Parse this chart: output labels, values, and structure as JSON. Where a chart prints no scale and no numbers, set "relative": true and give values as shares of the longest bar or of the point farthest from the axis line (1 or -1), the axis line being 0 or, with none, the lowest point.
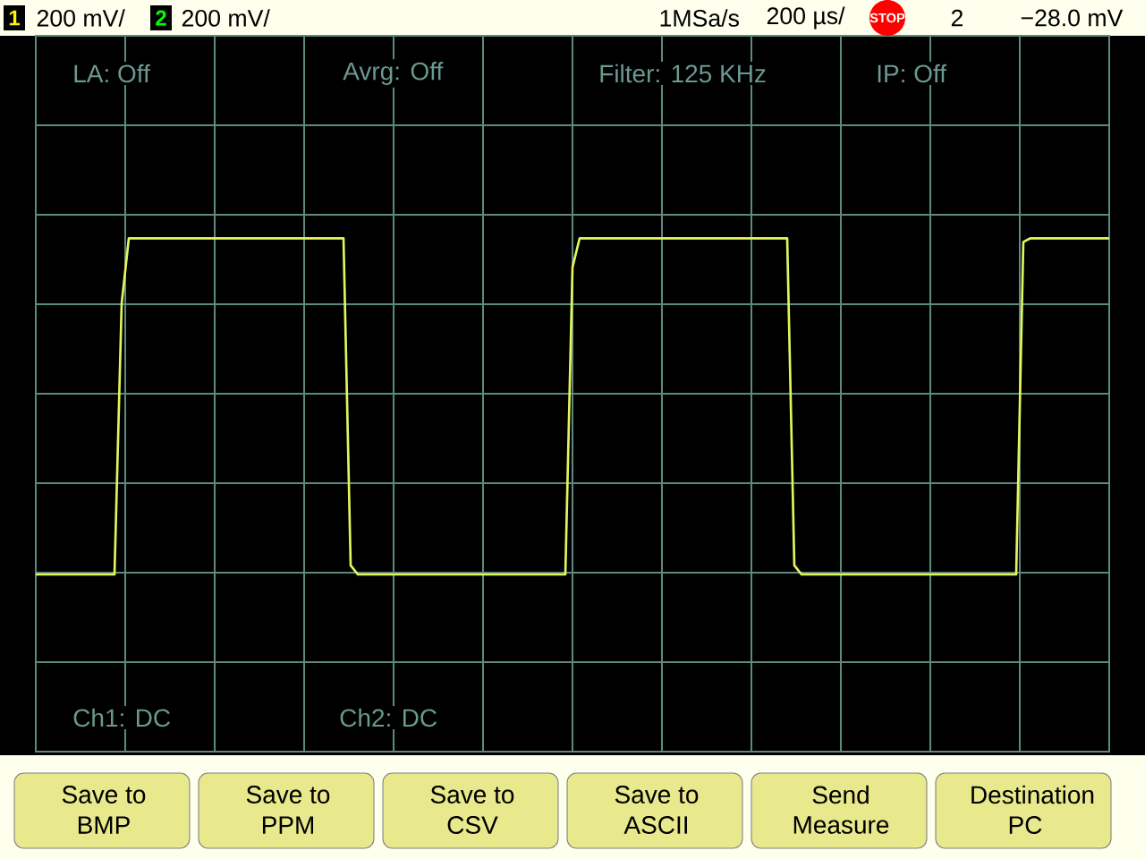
{
  "chart_data": {
    "type": "line",
    "relative": true,
    "grid": true,
    "categories": [
      null,
      null,
      null,
      null,
      null,
      null,
      null,
      null,
      null,
      null,
      null,
      null,
      null,
      null,
      null,
      null,
      null,
      null,
      null,
      null,
      null,
      null,
      null,
      null,
      null,
      null,
      null,
      null,
      null,
      null,
      null,
      null,
      null,
      null,
      null,
      null,
      null,
      null,
      null,
      null,
      null,
      null,
      null,
      null,
      null,
      null,
      null,
      null,
      null,
      null,
      null,
      null,
      null,
      null,
      null,
      null,
      null,
      null,
      null,
      null,
      null,
      null,
      null,
      null,
      null,
      null,
      null,
      null,
      null,
      null,
      null,
      null,
      null,
      null,
      null,
      null,
      null,
      null,
      null,
      null,
      null,
      null,
      null,
      null,
      null,
      null,
      null,
      null,
      null,
      null,
      null,
      null,
      null,
      null,
      null,
      null,
      null,
      null,
      null,
      null,
      null,
      null,
      null,
      null,
      null,
      null,
      null,
      null,
      null,
      null,
      null,
      null,
      null,
      null,
      null,
      null,
      null,
      null,
      null,
      null,
      null,
      null,
      null,
      null,
      null,
      null,
      null,
      null,
      null,
      null,
      null,
      null,
      null,
      null,
      null,
      null,
      null,
      null,
      null,
      null,
      null,
      null,
      null,
      null,
      null,
      null,
      null,
      null,
      null,
      null,
      null
    ],
    "series": [
      {
        "color": "#e4f55a",
        "values": [
          -1,
          -1,
          -1,
          -1,
          -1,
          -1,
          -1,
          -1,
          -1,
          -1,
          -1,
          -1,
          0.5,
          0.86,
          0.86,
          0.86,
          0.86,
          0.86,
          0.86,
          0.86,
          0.86,
          0.86,
          0.86,
          0.86,
          0.86,
          0.86,
          0.86,
          0.86,
          0.86,
          0.86,
          0.86,
          0.86,
          0.86,
          0.86,
          0.86,
          0.86,
          0.86,
          0.86,
          0.86,
          0.86,
          0.86,
          0.86,
          0.86,
          0.86,
          -0.95,
          -1,
          -1,
          -1,
          -1,
          -1,
          -1,
          -1,
          -1,
          -1,
          -1,
          -1,
          -1,
          -1,
          -1,
          -1,
          -1,
          -1,
          -1,
          -1,
          -1,
          -1,
          -1,
          -1,
          -1,
          -1,
          -1,
          -1,
          -1,
          -1,
          -1,
          0.7,
          0.86,
          0.86,
          0.86,
          0.86,
          0.86,
          0.86,
          0.86,
          0.86,
          0.86,
          0.86,
          0.86,
          0.86,
          0.86,
          0.86,
          0.86,
          0.86,
          0.86,
          0.86,
          0.86,
          0.86,
          0.86,
          0.86,
          0.86,
          0.86,
          0.86,
          0.86,
          0.86,
          0.86,
          0.86,
          0.86,
          -0.95,
          -1,
          -1,
          -1,
          -1,
          -1,
          -1,
          -1,
          -1,
          -1,
          -1,
          -1,
          -1,
          -1,
          -1,
          -1,
          -1,
          -1,
          -1,
          -1,
          -1,
          -1,
          -1,
          -1,
          -1,
          -1,
          -1,
          -1,
          -1,
          -1,
          -1,
          -1,
          0.84,
          0.86,
          0.86,
          0.86,
          0.86,
          0.86,
          0.86,
          0.86,
          0.86,
          0.86,
          0.86,
          0.86,
          0.86
        ]
      }
    ],
    "annotations": [
      "1",
      "200 mV/",
      "2",
      "200 mV/",
      "1MSa/s",
      "200 µs/",
      "STOP",
      "2",
      "−28.0 mV",
      "LA: Off",
      "Avrg: Off",
      "Filter: 125 KHz",
      "IP: Off",
      "Ch1: DC",
      "Ch2: DC",
      "Save to",
      "BMP",
      "Save to",
      "PPM",
      "Save to",
      "CSV",
      "Save to",
      "ASCII",
      "Send",
      "Measure",
      "Destination",
      "PC"
    ]
  }
}
